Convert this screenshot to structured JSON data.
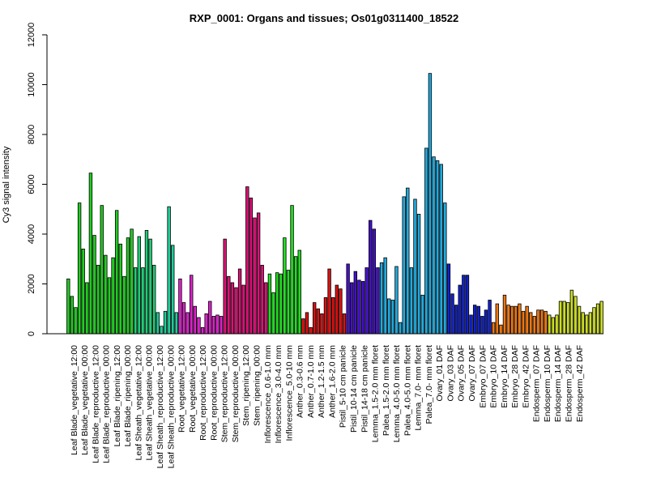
{
  "chart_data": {
    "type": "bar",
    "title": "RXP_0001: Organs and tissues; Os01g0311400_18522",
    "xlabel": "",
    "ylabel": "Cy3 signal intensity",
    "ylim": [
      0,
      12000
    ],
    "yticks": [
      0,
      2000,
      4000,
      6000,
      8000,
      10000,
      12000
    ],
    "grid": false,
    "legend": "none",
    "x_tick_labels": [
      "Leaf Blade_vegetative_12:00",
      "Leaf Blade_vegetative_00:00",
      "Leaf Blade_reproductive_12:00",
      "Leaf Blade_reproductive_00:00",
      "Leaf Blade_ripening_12:00",
      "Leaf Blade_ripening_00:00",
      "Leaf Sheath_vegetative_12:00",
      "Leaf Sheath_vegetative_00:00",
      "Leaf Sheath_reproductive_12:00",
      "Leaf Sheath_reproductive_00:00",
      "Root_vegetative_12:00",
      "Root_vegetative_00:00",
      "Root_reproductive_12:00",
      "Root_reproductive_00:00",
      "Stem_reproductive_12:00",
      "Stem_reproductive_00:00",
      "Stem_ripening_12:00",
      "Stem_ripening_00:00",
      "Inflorescence_0.6-1.0 mm",
      "Inflorescence_3.0-4.0 mm",
      "Inflorescence_5.0-10 mm",
      "Anther_0.3-0.6 mm",
      "Anther_0.7-1.0 mm",
      "Anther_1.2-1.5 mm",
      "Anther_1.6-2.0 mm",
      "Pistil_5-10 cm panicle",
      "Pistil_10-14 cm panicle",
      "Pistil_14-18 cm panicle",
      "Lemma_1.5-2.0 mm floret",
      "Palea_1.5-2.0 mm floret",
      "Lemma_4.0-5.0 mm floret",
      "Palea_4.0-5.0 mm floret",
      "Lemma_7.0- mm floret",
      "Palea_7.0- mm floret",
      "Ovary_01 DAF",
      "Ovary_03 DAF",
      "Ovary_05 DAF",
      "Ovary_07 DAF",
      "Embryo_07 DAF",
      "Embryo_10 DAF",
      "Embryo_14 DAF",
      "Embryo_28 DAF",
      "Embryo_42 DAF",
      "Endosperm_07 DAF",
      "Endosperm_10 DAF",
      "Endosperm_14 DAF",
      "Endosperm_28 DAF",
      "Endosperm_42 DAF"
    ],
    "categories": [
      {
        "color": "#22CC22",
        "values": [
          2200,
          1500,
          1050
        ]
      },
      {
        "color": "#22CC22",
        "values": [
          5250,
          3400,
          2050
        ]
      },
      {
        "color": "#22CC22",
        "values": [
          6450,
          3950,
          2750
        ]
      },
      {
        "color": "#22CC22",
        "values": [
          5150,
          3150,
          2250
        ]
      },
      {
        "color": "#22CC22",
        "values": [
          3050,
          4950,
          3600
        ]
      },
      {
        "color": "#22CC22",
        "values": [
          2300,
          3850,
          4200
        ]
      },
      {
        "color": "#22CC77",
        "values": [
          2650,
          3900,
          2650
        ]
      },
      {
        "color": "#22CC77",
        "values": [
          4150,
          3800,
          2750
        ]
      },
      {
        "color": "#22CC99",
        "values": [
          850,
          300,
          900
        ]
      },
      {
        "color": "#22CC99",
        "values": [
          5100,
          3550,
          850
        ]
      },
      {
        "color": "#DD22CC",
        "values": [
          2200,
          1250,
          850
        ]
      },
      {
        "color": "#DD22CC",
        "values": [
          2350,
          1100,
          650
        ]
      },
      {
        "color": "#DD22CC",
        "values": [
          250,
          800,
          1300
        ]
      },
      {
        "color": "#DD22CC",
        "values": [
          700,
          750,
          700
        ]
      },
      {
        "color": "#DD1177",
        "values": [
          3800,
          2300,
          2050
        ]
      },
      {
        "color": "#DD1177",
        "values": [
          1850,
          2600,
          1950
        ]
      },
      {
        "color": "#DD1177",
        "values": [
          5900,
          5450,
          4650
        ]
      },
      {
        "color": "#DD1177",
        "values": [
          4850,
          2750,
          2050
        ]
      },
      {
        "color": "#22DD22",
        "values": [
          2400,
          1650,
          2450
        ]
      },
      {
        "color": "#22DD22",
        "values": [
          2400,
          3850,
          2550
        ]
      },
      {
        "color": "#22DD22",
        "values": [
          5150,
          3100,
          3350
        ]
      },
      {
        "color": "#DD1111",
        "values": [
          600,
          850,
          250
        ]
      },
      {
        "color": "#DD1111",
        "values": [
          1250,
          1000,
          800
        ]
      },
      {
        "color": "#DD1111",
        "values": [
          1450,
          2600,
          1450
        ]
      },
      {
        "color": "#DD1111",
        "values": [
          1950,
          1800,
          800
        ]
      },
      {
        "color": "#4411CC",
        "values": [
          2800,
          2050,
          2500
        ]
      },
      {
        "color": "#4411CC",
        "values": [
          2150,
          2100,
          2650
        ]
      },
      {
        "color": "#4411CC",
        "values": [
          4550,
          4200,
          2650
        ]
      },
      {
        "color": "#22AADD",
        "values": [
          2850,
          3050,
          1400
        ]
      },
      {
        "color": "#22AADD",
        "values": [
          1350,
          2700,
          450
        ]
      },
      {
        "color": "#22AADD",
        "values": [
          5500,
          5850,
          2650
        ]
      },
      {
        "color": "#22AADD",
        "values": [
          5400,
          4800,
          1550
        ]
      },
      {
        "color": "#22AADD",
        "values": [
          7450,
          10450,
          7100
        ]
      },
      {
        "color": "#22AADD",
        "values": [
          6950,
          6800,
          5250
        ]
      },
      {
        "color": "#1122CC",
        "values": [
          2800,
          1600,
          1150
        ]
      },
      {
        "color": "#1122CC",
        "values": [
          1950,
          2350,
          2350
        ]
      },
      {
        "color": "#1122CC",
        "values": [
          750,
          1150,
          1100
        ]
      },
      {
        "color": "#1122CC",
        "values": [
          700,
          950,
          1350
        ]
      },
      {
        "color": "#EE7711",
        "values": [
          450,
          1200,
          350
        ]
      },
      {
        "color": "#EE7711",
        "values": [
          1550,
          1150,
          1100
        ]
      },
      {
        "color": "#EE7711",
        "values": [
          1100,
          1200,
          900
        ]
      },
      {
        "color": "#EE7711",
        "values": [
          1100,
          850,
          700
        ]
      },
      {
        "color": "#EE7711",
        "values": [
          950,
          950,
          900
        ]
      },
      {
        "color": "#CCDD22",
        "values": [
          750,
          650,
          750
        ]
      },
      {
        "color": "#CCDD22",
        "values": [
          1300,
          1300,
          1250
        ]
      },
      {
        "color": "#CCDD22",
        "values": [
          1750,
          1500,
          1100
        ]
      },
      {
        "color": "#CCDD22",
        "values": [
          850,
          750,
          850
        ]
      },
      {
        "color": "#CCDD22",
        "values": [
          1050,
          1200,
          1300
        ]
      }
    ]
  }
}
